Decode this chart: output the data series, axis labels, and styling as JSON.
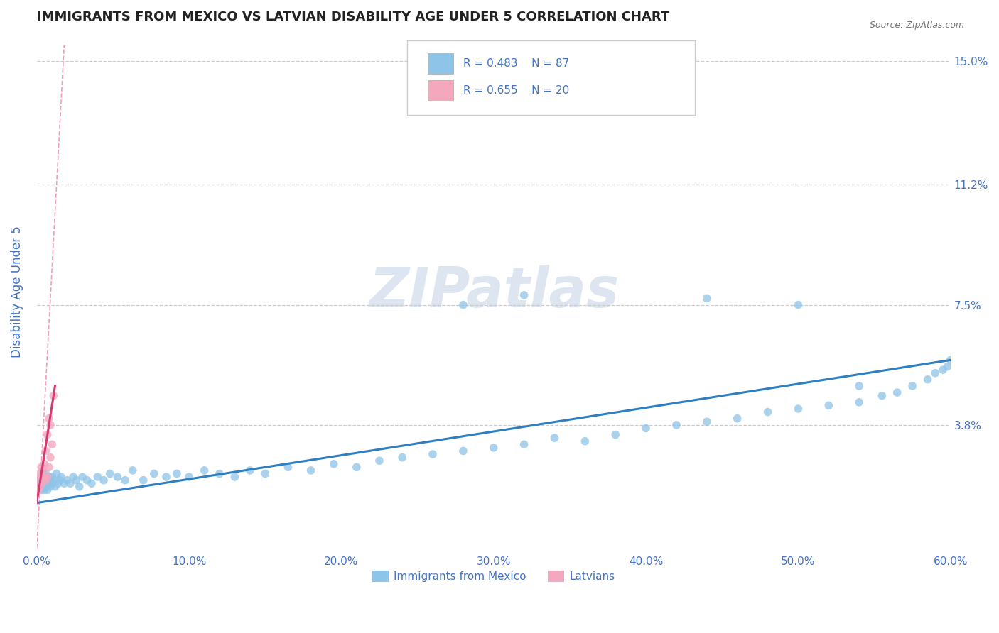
{
  "title": "IMMIGRANTS FROM MEXICO VS LATVIAN DISABILITY AGE UNDER 5 CORRELATION CHART",
  "source": "Source: ZipAtlas.com",
  "xlabel_bottom": "Immigrants from Mexico",
  "xlabel_bottom2": "Latvians",
  "ylabel": "Disability Age Under 5",
  "xlim": [
    0.0,
    0.6
  ],
  "ylim": [
    0.0,
    0.158
  ],
  "xticks": [
    0.0,
    0.1,
    0.2,
    0.3,
    0.4,
    0.5,
    0.6
  ],
  "xticklabels": [
    "0.0%",
    "10.0%",
    "20.0%",
    "30.0%",
    "40.0%",
    "50.0%",
    "60.0%"
  ],
  "ytick_positions": [
    0.038,
    0.075,
    0.112,
    0.15
  ],
  "ytick_labels": [
    "3.8%",
    "7.5%",
    "11.2%",
    "15.0%"
  ],
  "legend_r1": "R = 0.483",
  "legend_n1": "N = 87",
  "legend_r2": "R = 0.655",
  "legend_n2": "N = 20",
  "blue_color": "#8ec4e8",
  "pink_color": "#f4a8be",
  "trend_blue": "#2d7fc1",
  "trend_pink": "#d63870",
  "ref_line_color": "#f0a0b8",
  "grid_color": "#cccccc",
  "title_color": "#222222",
  "axis_label_color": "#4472c4",
  "tick_color": "#4472c4",
  "watermark_color": "#dde5f0",
  "blue_scatter_x": [
    0.001,
    0.002,
    0.002,
    0.003,
    0.003,
    0.004,
    0.004,
    0.004,
    0.005,
    0.005,
    0.005,
    0.006,
    0.006,
    0.006,
    0.007,
    0.007,
    0.008,
    0.008,
    0.009,
    0.009,
    0.01,
    0.01,
    0.011,
    0.012,
    0.013,
    0.014,
    0.015,
    0.016,
    0.018,
    0.02,
    0.022,
    0.024,
    0.026,
    0.028,
    0.03,
    0.033,
    0.036,
    0.04,
    0.044,
    0.048,
    0.053,
    0.058,
    0.063,
    0.07,
    0.077,
    0.085,
    0.092,
    0.1,
    0.11,
    0.12,
    0.13,
    0.14,
    0.15,
    0.165,
    0.18,
    0.195,
    0.21,
    0.225,
    0.24,
    0.26,
    0.28,
    0.3,
    0.32,
    0.34,
    0.36,
    0.38,
    0.4,
    0.42,
    0.44,
    0.46,
    0.48,
    0.5,
    0.52,
    0.54,
    0.555,
    0.565,
    0.575,
    0.585,
    0.59,
    0.595,
    0.598,
    0.6,
    0.28,
    0.32,
    0.44,
    0.5,
    0.54
  ],
  "blue_scatter_y": [
    0.019,
    0.02,
    0.021,
    0.018,
    0.022,
    0.019,
    0.021,
    0.023,
    0.018,
    0.02,
    0.022,
    0.019,
    0.021,
    0.023,
    0.018,
    0.022,
    0.02,
    0.022,
    0.019,
    0.021,
    0.02,
    0.022,
    0.021,
    0.019,
    0.023,
    0.02,
    0.021,
    0.022,
    0.02,
    0.021,
    0.02,
    0.022,
    0.021,
    0.019,
    0.022,
    0.021,
    0.02,
    0.022,
    0.021,
    0.023,
    0.022,
    0.021,
    0.024,
    0.021,
    0.023,
    0.022,
    0.023,
    0.022,
    0.024,
    0.023,
    0.022,
    0.024,
    0.023,
    0.025,
    0.024,
    0.026,
    0.025,
    0.027,
    0.028,
    0.029,
    0.03,
    0.031,
    0.032,
    0.034,
    0.033,
    0.035,
    0.037,
    0.038,
    0.039,
    0.04,
    0.042,
    0.043,
    0.044,
    0.045,
    0.047,
    0.048,
    0.05,
    0.052,
    0.054,
    0.055,
    0.056,
    0.058,
    0.075,
    0.078,
    0.077,
    0.075,
    0.05
  ],
  "pink_scatter_x": [
    0.001,
    0.001,
    0.002,
    0.002,
    0.003,
    0.003,
    0.004,
    0.004,
    0.005,
    0.005,
    0.006,
    0.006,
    0.007,
    0.007,
    0.008,
    0.008,
    0.009,
    0.009,
    0.01,
    0.011
  ],
  "pink_scatter_y": [
    0.018,
    0.021,
    0.019,
    0.023,
    0.02,
    0.025,
    0.021,
    0.024,
    0.022,
    0.026,
    0.021,
    0.03,
    0.022,
    0.035,
    0.025,
    0.04,
    0.028,
    0.038,
    0.032,
    0.047
  ],
  "blue_trend_x": [
    0.0,
    0.6
  ],
  "blue_trend_y": [
    0.014,
    0.058
  ],
  "pink_trend_x": [
    0.0,
    0.012
  ],
  "pink_trend_y": [
    0.014,
    0.05
  ],
  "ref_line_x": [
    0.0,
    0.018
  ],
  "ref_line_y": [
    0.0,
    0.155
  ]
}
